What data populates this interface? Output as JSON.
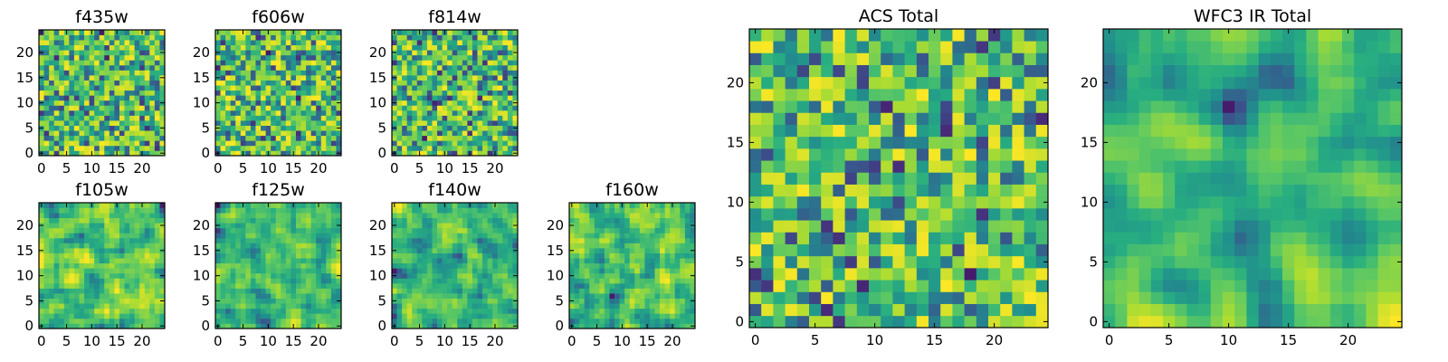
{
  "chart_data": [
    {
      "type": "heatmap",
      "title": "f435w",
      "x_ticks": [
        "0",
        "5",
        "10",
        "15",
        "20"
      ],
      "y_ticks": [
        "0",
        "5",
        "10",
        "15",
        "20"
      ],
      "xlim": [
        -0.5,
        24.5
      ],
      "ylim": [
        -0.5,
        24.5
      ],
      "grid_size": 25,
      "seed": 11,
      "smooth": 0,
      "colormap": "viridis"
    },
    {
      "type": "heatmap",
      "title": "f606w",
      "x_ticks": [
        "0",
        "5",
        "10",
        "15",
        "20"
      ],
      "y_ticks": [
        "0",
        "5",
        "10",
        "15",
        "20"
      ],
      "xlim": [
        -0.5,
        24.5
      ],
      "ylim": [
        -0.5,
        24.5
      ],
      "grid_size": 25,
      "seed": 23,
      "smooth": 0,
      "colormap": "viridis"
    },
    {
      "type": "heatmap",
      "title": "f814w",
      "x_ticks": [
        "0",
        "5",
        "10",
        "15",
        "20"
      ],
      "y_ticks": [
        "0",
        "5",
        "10",
        "15",
        "20"
      ],
      "xlim": [
        -0.5,
        24.5
      ],
      "ylim": [
        -0.5,
        24.5
      ],
      "grid_size": 25,
      "seed": 37,
      "smooth": 0,
      "colormap": "viridis"
    },
    {
      "type": "heatmap",
      "title": "f105w",
      "x_ticks": [
        "0",
        "5",
        "10",
        "15",
        "20"
      ],
      "y_ticks": [
        "0",
        "5",
        "10",
        "15",
        "20"
      ],
      "xlim": [
        -0.5,
        24.5
      ],
      "ylim": [
        -0.5,
        24.5
      ],
      "grid_size": 25,
      "seed": 41,
      "smooth": 1,
      "colormap": "viridis"
    },
    {
      "type": "heatmap",
      "title": "f125w",
      "x_ticks": [
        "0",
        "5",
        "10",
        "15",
        "20"
      ],
      "y_ticks": [
        "0",
        "5",
        "10",
        "15",
        "20"
      ],
      "xlim": [
        -0.5,
        24.5
      ],
      "ylim": [
        -0.5,
        24.5
      ],
      "grid_size": 25,
      "seed": 53,
      "smooth": 1,
      "colormap": "viridis"
    },
    {
      "type": "heatmap",
      "title": "f140w",
      "x_ticks": [
        "0",
        "5",
        "10",
        "15",
        "20"
      ],
      "y_ticks": [
        "0",
        "5",
        "10",
        "15",
        "20"
      ],
      "xlim": [
        -0.5,
        24.5
      ],
      "ylim": [
        -0.5,
        24.5
      ],
      "grid_size": 25,
      "seed": 67,
      "smooth": 1,
      "colormap": "viridis"
    },
    {
      "type": "heatmap",
      "title": "f160w",
      "x_ticks": [
        "0",
        "5",
        "10",
        "15",
        "20"
      ],
      "y_ticks": [
        "0",
        "5",
        "10",
        "15",
        "20"
      ],
      "xlim": [
        -0.5,
        24.5
      ],
      "ylim": [
        -0.5,
        24.5
      ],
      "grid_size": 25,
      "seed": 79,
      "smooth": 1,
      "colormap": "viridis"
    },
    {
      "type": "heatmap",
      "title": "ACS Total",
      "x_ticks": [
        "0",
        "5",
        "10",
        "15",
        "20"
      ],
      "y_ticks": [
        "0",
        "5",
        "10",
        "15",
        "20"
      ],
      "xlim": [
        -0.5,
        24.5
      ],
      "ylim": [
        -0.5,
        24.5
      ],
      "grid_size": 25,
      "seed": 83,
      "smooth": 0,
      "colormap": "viridis"
    },
    {
      "type": "heatmap",
      "title": "WFC3 IR Total",
      "x_ticks": [
        "0",
        "5",
        "10",
        "15",
        "20"
      ],
      "y_ticks": [
        "0",
        "5",
        "10",
        "15",
        "20"
      ],
      "xlim": [
        -0.5,
        24.5
      ],
      "ylim": [
        -0.5,
        24.5
      ],
      "grid_size": 25,
      "seed": 97,
      "smooth": 2,
      "colormap": "viridis"
    }
  ]
}
